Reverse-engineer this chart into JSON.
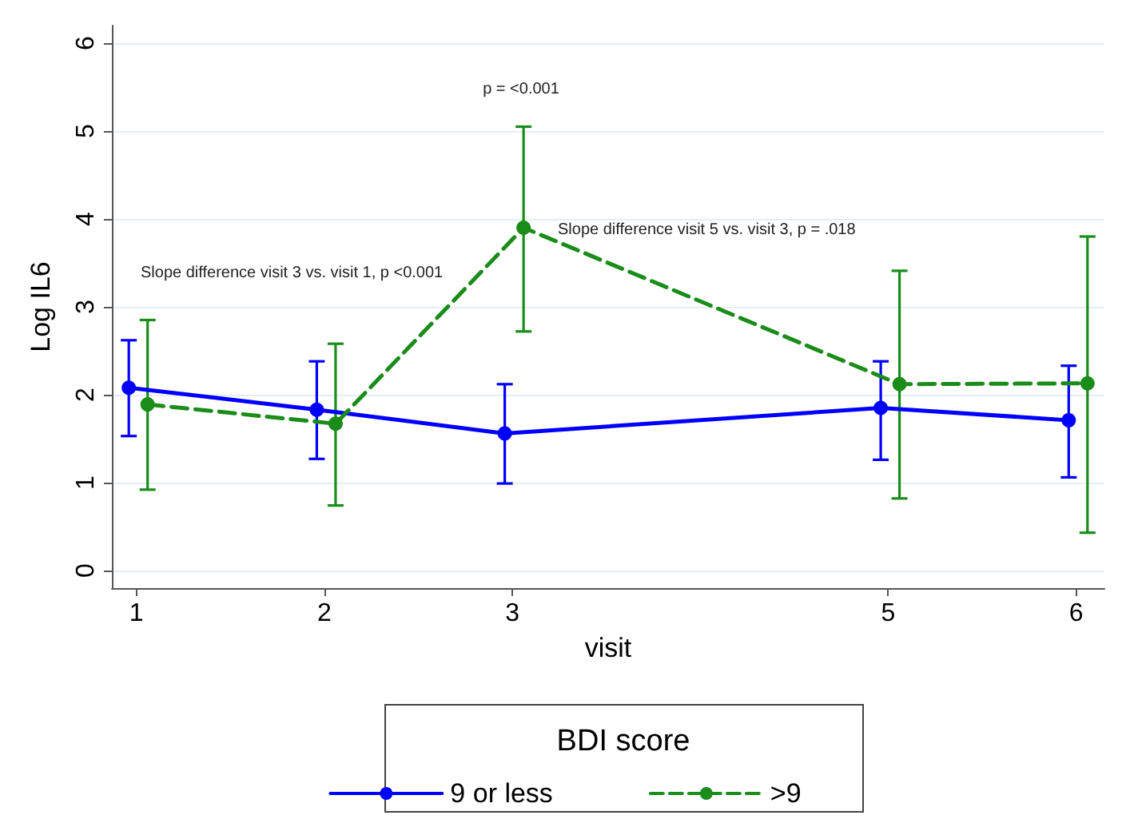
{
  "chart_data": {
    "type": "line",
    "xlabel": "visit",
    "ylabel": "Log IL6",
    "legend_title": "BDI score",
    "xlim": [
      0.87,
      6.15
    ],
    "xticks": [
      1,
      2,
      3,
      5,
      6
    ],
    "ylim": [
      -0.2,
      6.2
    ],
    "yticks": [
      0,
      1,
      2,
      3,
      4,
      5,
      6
    ],
    "series": [
      {
        "name": "9 or less",
        "color": "#0000ff",
        "line_style": "solid",
        "x": [
          0.96,
          1.96,
          2.96,
          4.96,
          5.96
        ],
        "values": [
          2.08,
          1.83,
          1.56,
          1.85,
          1.71
        ],
        "errors": [
          [
            1.53,
            2.62
          ],
          [
            1.27,
            2.38
          ],
          [
            0.99,
            2.12
          ],
          [
            1.26,
            2.38
          ],
          [
            1.06,
            2.33
          ]
        ]
      },
      {
        "name": ">9",
        "color": "#1a8c1a",
        "line_style": "dashed",
        "x": [
          1.06,
          2.06,
          3.06,
          5.06,
          6.06
        ],
        "values": [
          1.89,
          1.67,
          3.9,
          2.12,
          2.13
        ],
        "errors": [
          [
            0.92,
            2.85
          ],
          [
            0.74,
            2.58
          ],
          [
            2.72,
            5.05
          ],
          [
            0.82,
            3.41
          ],
          [
            0.43,
            3.8
          ]
        ]
      }
    ],
    "annotations": [
      "p = <0.001",
      "Slope difference visit 3 vs. visit 1, p <0.001",
      "Slope difference visit 5 vs. visit 3, p = .018"
    ],
    "marker": "circle",
    "grid": "y",
    "legend": "bottom"
  }
}
